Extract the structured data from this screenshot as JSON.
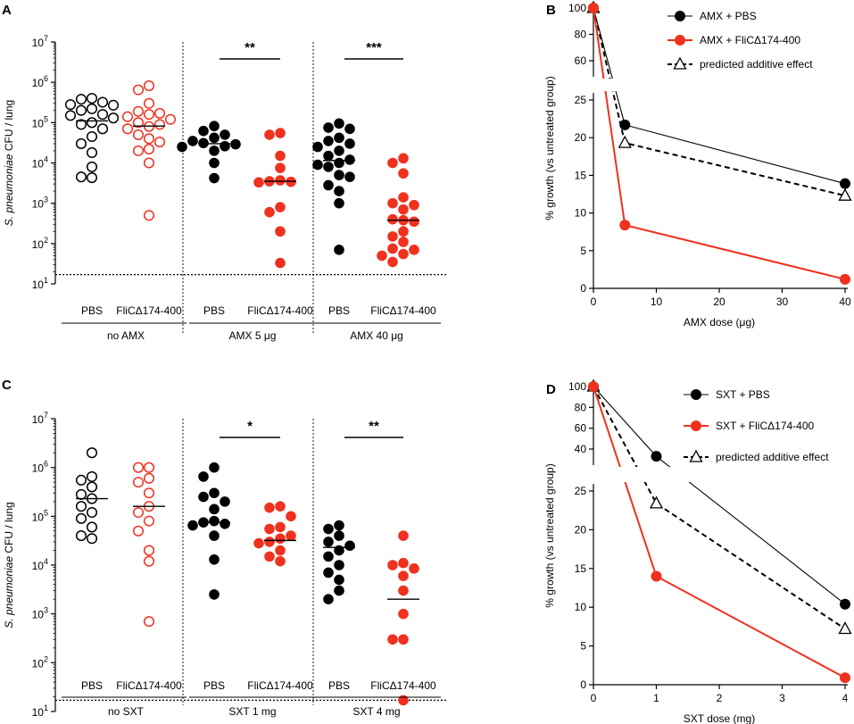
{
  "chart_data": [
    {
      "panel": "A",
      "type": "scatter",
      "ylabel_italic": "S. pneumoniae",
      "ylabel_rest": " CFU / lung",
      "yscale": "log",
      "ylim": [
        10,
        10000000
      ],
      "yticks": [
        {
          "base": "10",
          "exp": "1"
        },
        {
          "base": "10",
          "exp": "2"
        },
        {
          "base": "10",
          "exp": "3"
        },
        {
          "base": "10",
          "exp": "4"
        },
        {
          "base": "10",
          "exp": "5"
        },
        {
          "base": "10",
          "exp": "6"
        },
        {
          "base": "10",
          "exp": "7"
        }
      ],
      "detection_limit": 17,
      "groups": [
        {
          "label": "no AMX",
          "significance": "",
          "columns": [
            {
              "label": "PBS",
              "style": "open-black",
              "median": 110000,
              "values": [
                400000,
                380000,
                320000,
                280000,
                270000,
                220000,
                200000,
                160000,
                150000,
                130000,
                100000,
                90000,
                70000,
                45000,
                30000,
                18000,
                8000,
                4500,
                4300
              ]
            },
            {
              "label": "FliCΔ174-400",
              "style": "open-red",
              "median": 82000,
              "values": [
                820000,
                650000,
                300000,
                190000,
                170000,
                160000,
                140000,
                120000,
                100000,
                90000,
                80000,
                70000,
                50000,
                40000,
                33000,
                22000,
                20000,
                10000,
                500
              ]
            }
          ]
        },
        {
          "label": "AMX 5 μg",
          "significance": "**",
          "columns": [
            {
              "label": "PBS",
              "style": "filled-black",
              "median": 30000,
              "values": [
                82000,
                62000,
                50000,
                42000,
                35000,
                31000,
                29000,
                26000,
                25000,
                20000,
                10000,
                4200
              ]
            },
            {
              "label": "FliCΔ174-400",
              "style": "filled-red",
              "median": 3500,
              "values": [
                55000,
                50000,
                15000,
                7500,
                3700,
                3500,
                3400,
                3300,
                800,
                600,
                200,
                33
              ]
            }
          ]
        },
        {
          "label": "AMX 40 μg",
          "significance": "***",
          "columns": [
            {
              "label": "PBS",
              "style": "filled-black",
              "median": 11500,
              "values": [
                95000,
                75000,
                70000,
                42000,
                35000,
                30000,
                25000,
                20000,
                15000,
                12000,
                10000,
                9000,
                8000,
                5000,
                4500,
                2800,
                2000,
                1000,
                70
              ]
            },
            {
              "label": "FliCΔ174-400",
              "style": "filled-red",
              "median": 380,
              "values": [
                13000,
                10000,
                5500,
                1400,
                1000,
                900,
                700,
                400,
                380,
                350,
                200,
                150,
                110,
                75,
                70,
                55,
                50,
                35
              ]
            }
          ]
        }
      ]
    },
    {
      "panel": "B",
      "type": "line",
      "xlabel": "AMX dose (μg)",
      "ylabel": "% growth (vs untreated group)",
      "xlim": [
        0,
        40
      ],
      "xticks": [
        "0",
        "10",
        "20",
        "30",
        "40"
      ],
      "yticks_upper": [
        "60",
        "80",
        "100"
      ],
      "yticks_lower": [
        "0",
        "5",
        "10",
        "15",
        "20",
        "25"
      ],
      "series": [
        {
          "name": "AMX + PBS",
          "style": "black-solid-circle",
          "x": [
            0,
            5,
            40
          ],
          "y": [
            100,
            21.7,
            13.9
          ]
        },
        {
          "name": "AMX + FliCΔ174-400",
          "style": "red-solid-circle",
          "x": [
            0,
            5,
            40
          ],
          "y": [
            100,
            8.4,
            1.2
          ]
        },
        {
          "name": "predicted additive effect",
          "style": "black-dashed-triangle",
          "x": [
            0,
            5,
            40
          ],
          "y": [
            100,
            19.3,
            12.3
          ]
        }
      ]
    },
    {
      "panel": "C",
      "type": "scatter",
      "ylabel_italic": "S. pneumoniae",
      "ylabel_rest": " CFU / lung",
      "yscale": "log",
      "ylim": [
        10,
        10000000
      ],
      "yticks": [
        {
          "base": "10",
          "exp": "1"
        },
        {
          "base": "10",
          "exp": "2"
        },
        {
          "base": "10",
          "exp": "3"
        },
        {
          "base": "10",
          "exp": "4"
        },
        {
          "base": "10",
          "exp": "5"
        },
        {
          "base": "10",
          "exp": "6"
        },
        {
          "base": "10",
          "exp": "7"
        }
      ],
      "detection_limit": 17,
      "groups": [
        {
          "label": "no SXT",
          "significance": "",
          "columns": [
            {
              "label": "PBS",
              "style": "open-black",
              "median": 230000,
              "values": [
                2000000,
                650000,
                550000,
                400000,
                280000,
                230000,
                160000,
                120000,
                90000,
                60000,
                40000,
                35000
              ]
            },
            {
              "label": "FliCΔ174-400",
              "style": "open-red",
              "median": 160000,
              "values": [
                1000000,
                1000000,
                600000,
                500000,
                300000,
                160000,
                120000,
                80000,
                50000,
                20000,
                12000,
                700
              ]
            }
          ]
        },
        {
          "label": "SXT 1 mg",
          "significance": "*",
          "columns": [
            {
              "label": "PBS",
              "style": "filled-black",
              "median": 75000,
              "values": [
                1000000,
                650000,
                300000,
                250000,
                200000,
                140000,
                80000,
                75000,
                70000,
                65000,
                40000,
                13000,
                2500
              ]
            },
            {
              "label": "FliCΔ174-400",
              "style": "filled-red",
              "median": 32000,
              "values": [
                160000,
                150000,
                100000,
                60000,
                55000,
                40000,
                35000,
                30000,
                28000,
                20000,
                15000,
                12000
              ]
            }
          ]
        },
        {
          "label": "SXT 4 mg",
          "significance": "**",
          "columns": [
            {
              "label": "PBS",
              "style": "filled-black",
              "median": 23000,
              "values": [
                65000,
                55000,
                40000,
                30000,
                25000,
                20000,
                15000,
                10000,
                7000,
                5000,
                3000,
                2000
              ]
            },
            {
              "label": "FliCΔ174-400",
              "style": "filled-red",
              "median": 2000,
              "values": [
                40000,
                11000,
                10000,
                8500,
                6000,
                3000,
                1000,
                300,
                300,
                17
              ]
            }
          ]
        }
      ]
    },
    {
      "panel": "D",
      "type": "line",
      "xlabel": "SXT dose (mg)",
      "ylabel": "% growth (vs untreated group)",
      "xlim": [
        0,
        4
      ],
      "xticks": [
        "0",
        "1",
        "2",
        "3",
        "4"
      ],
      "yticks_upper": [
        "40",
        "60",
        "80",
        "100"
      ],
      "yticks_lower": [
        "0",
        "5",
        "10",
        "15",
        "20",
        "25"
      ],
      "series": [
        {
          "name": "SXT + PBS",
          "style": "black-solid-circle",
          "x": [
            0,
            1,
            4
          ],
          "y": [
            100,
            33,
            10.4
          ]
        },
        {
          "name": "SXT + FliCΔ174-400",
          "style": "red-solid-circle",
          "x": [
            0,
            1,
            4
          ],
          "y": [
            100,
            14,
            0.9
          ]
        },
        {
          "name": "predicted additive effect",
          "style": "black-dashed-triangle",
          "x": [
            0,
            1,
            4
          ],
          "y": [
            100,
            23.4,
            7.2
          ]
        }
      ]
    }
  ]
}
